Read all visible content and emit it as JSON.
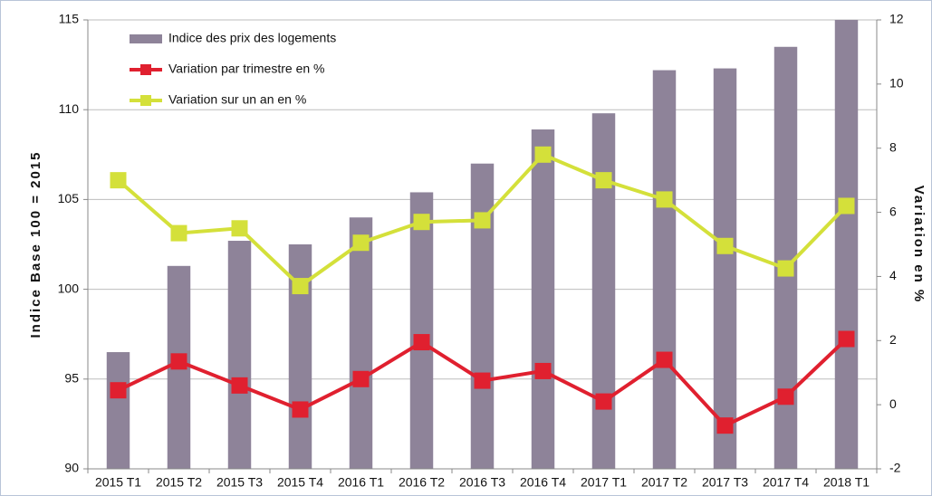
{
  "chart_data": {
    "type": "bar_line",
    "y_label": "Indice Base 100 = 2015",
    "y2_label": "Variation en %",
    "categories": [
      "2015 T1",
      "2015 T2",
      "2015 T3",
      "2015 T4",
      "2016 T1",
      "2016 T2",
      "2016 T3",
      "2016 T4",
      "2017 T1",
      "2017 T2",
      "2017 T3",
      "2017 T4",
      "2018 T1"
    ],
    "series": [
      {
        "name": "Indice des prix des logements",
        "color": "#8e8399",
        "kind": "bar",
        "values": [
          96.5,
          101.3,
          102.7,
          102.5,
          104.0,
          105.4,
          107.0,
          108.9,
          109.8,
          112.2,
          112.3,
          113.5,
          115.0
        ]
      },
      {
        "name": "Variation par trimestre en %",
        "color": "#e0202f",
        "kind": "line",
        "axis": "y2",
        "values": [
          0.45,
          1.35,
          0.6,
          -0.15,
          0.8,
          1.95,
          0.75,
          1.05,
          0.1,
          1.4,
          -0.65,
          0.25,
          2.05
        ]
      },
      {
        "name": "Variation sur un an en %",
        "color": "#d4e03a",
        "kind": "line",
        "axis": "y2",
        "values": [
          7.0,
          5.35,
          5.5,
          3.7,
          5.05,
          5.7,
          5.75,
          7.8,
          7.0,
          6.4,
          4.95,
          4.25,
          6.2
        ]
      }
    ],
    "ylim": [
      90,
      115
    ],
    "yticks": [
      90,
      95,
      100,
      105,
      110,
      115
    ],
    "y2lim": [
      -2,
      12
    ],
    "y2ticks": [
      -2,
      0,
      2,
      4,
      6,
      8,
      10,
      12
    ],
    "grid": true
  }
}
